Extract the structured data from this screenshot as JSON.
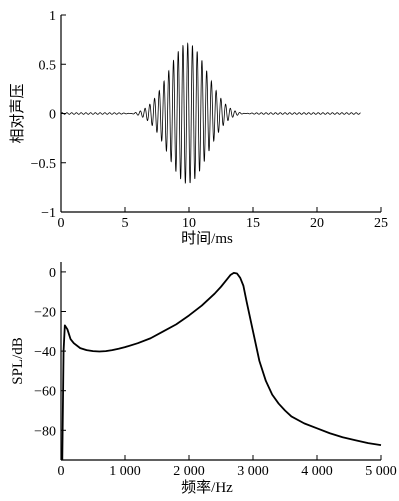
{
  "chart_data": [
    {
      "type": "line",
      "xlabel": "时间/ms",
      "ylabel": "相对声压",
      "xlim": [
        0,
        25
      ],
      "ylim": [
        -1,
        1
      ],
      "xticks": [
        0,
        5,
        10,
        15,
        20,
        25
      ],
      "yticks": [
        -1,
        -0.5,
        0,
        0.5,
        1
      ],
      "xtick_labels": [
        "0",
        "5",
        "10",
        "15",
        "20",
        "25"
      ],
      "ytick_labels": [
        "−1",
        "−0.5",
        "0",
        "0.5",
        "1"
      ],
      "grid": false,
      "waveform": {
        "description_type": "gaussian-modulated sinusoid",
        "x_range": [
          0,
          23.4
        ],
        "center_ms": 9.9,
        "peak_amplitude": 0.72,
        "carrier_frequency_khz": 2.7,
        "envelope_sigma_ms": 1.5,
        "baseline_ripple": 0.008
      }
    },
    {
      "type": "line",
      "xlabel": "频率/Hz",
      "ylabel": "SPL/dB",
      "xlim": [
        0,
        5000
      ],
      "ylim": [
        -95,
        5
      ],
      "xticks": [
        0,
        1000,
        2000,
        3000,
        4000,
        5000
      ],
      "yticks": [
        -80,
        -60,
        -40,
        -20,
        0
      ],
      "xtick_labels": [
        "0",
        "1 000",
        "2 000",
        "3 000",
        "4 000",
        "5 000"
      ],
      "ytick_labels": [
        "−80",
        "−60",
        "−40",
        "−20",
        "0"
      ],
      "grid": false,
      "series": [
        {
          "x": [
            20,
            40,
            60,
            100,
            150,
            200,
            300,
            400,
            500,
            600,
            700,
            800,
            900,
            1000,
            1200,
            1400,
            1600,
            1800,
            2000,
            2200,
            2400,
            2500,
            2600,
            2650,
            2700,
            2750,
            2800,
            2850,
            2900,
            3000,
            3100,
            3200,
            3300,
            3400,
            3500,
            3600,
            3800,
            4000,
            4200,
            4400,
            4600,
            4800,
            5000
          ],
          "y": [
            -120,
            -40,
            -27,
            -29,
            -34,
            -36,
            -38.5,
            -39.5,
            -40,
            -40.2,
            -40,
            -39.5,
            -38.8,
            -38,
            -36,
            -33.5,
            -30,
            -26.5,
            -22,
            -17,
            -11,
            -7.5,
            -3.5,
            -1.5,
            -0.5,
            -0.8,
            -3,
            -7,
            -15,
            -30,
            -45,
            -55,
            -62,
            -66.5,
            -70,
            -73,
            -76.5,
            -79,
            -81.5,
            -83.5,
            -85,
            -86.5,
            -87.5
          ]
        }
      ]
    }
  ]
}
